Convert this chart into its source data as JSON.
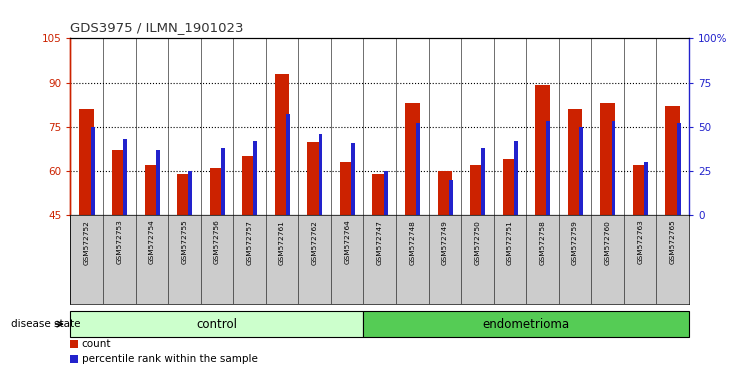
{
  "title": "GDS3975 / ILMN_1901023",
  "samples": [
    "GSM572752",
    "GSM572753",
    "GSM572754",
    "GSM572755",
    "GSM572756",
    "GSM572757",
    "GSM572761",
    "GSM572762",
    "GSM572764",
    "GSM572747",
    "GSM572748",
    "GSM572749",
    "GSM572750",
    "GSM572751",
    "GSM572758",
    "GSM572759",
    "GSM572760",
    "GSM572763",
    "GSM572765"
  ],
  "count_values": [
    81,
    67,
    62,
    59,
    61,
    65,
    93,
    70,
    63,
    59,
    83,
    60,
    62,
    64,
    89,
    81,
    83,
    62,
    82
  ],
  "percentile_values": [
    50,
    43,
    37,
    25,
    38,
    42,
    57,
    46,
    41,
    25,
    52,
    20,
    38,
    42,
    53,
    50,
    53,
    30,
    52
  ],
  "control_count": 9,
  "endometrioma_count": 10,
  "ylim_left": [
    45,
    105
  ],
  "ylim_right": [
    0,
    100
  ],
  "yticks_left": [
    45,
    60,
    75,
    90,
    105
  ],
  "yticks_right": [
    0,
    25,
    50,
    75,
    100
  ],
  "ytick_labels_right": [
    "0",
    "25",
    "50",
    "75",
    "100%"
  ],
  "bar_color": "#cc2200",
  "percentile_color": "#2222cc",
  "control_color": "#ccffcc",
  "endometrioma_color": "#55cc55",
  "bg_color": "#cccccc",
  "left_axis_color": "#cc2200",
  "right_axis_color": "#2222cc",
  "grid_yticks": [
    60,
    75,
    90
  ]
}
